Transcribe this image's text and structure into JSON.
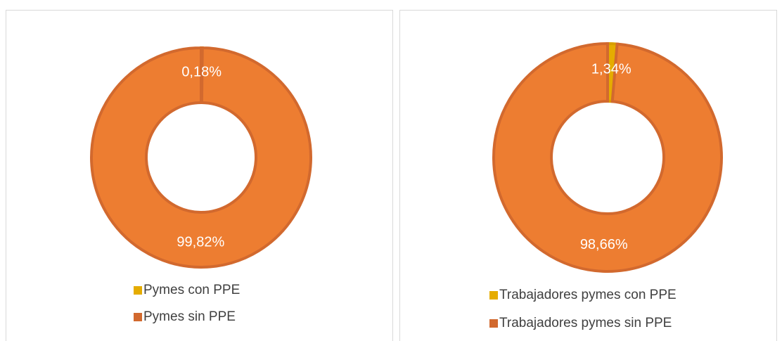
{
  "chart_data": [
    {
      "type": "donut",
      "categories": [
        "Pymes con PPE",
        "Pymes sin PPE"
      ],
      "values": [
        0.18,
        99.82
      ],
      "value_labels": [
        "0,18%",
        "99,82%"
      ],
      "colors": [
        "#E5AC00",
        "#ED7D31"
      ],
      "legend": "bottom"
    },
    {
      "type": "donut",
      "categories": [
        "Trabajadores pymes con PPE",
        "Trabajadores pymes sin PPE"
      ],
      "values": [
        1.34,
        98.66
      ],
      "value_labels": [
        "1,34%",
        "98,66%"
      ],
      "colors": [
        "#E5AC00",
        "#ED7D31"
      ],
      "legend": "bottom"
    }
  ]
}
